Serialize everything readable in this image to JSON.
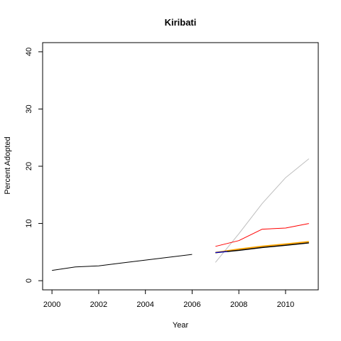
{
  "chart_data": {
    "type": "line",
    "title": "Kiribati",
    "xlabel": "Year",
    "ylabel": "Percent Adopted",
    "xlim": [
      1999.6,
      2011.4
    ],
    "ylim": [
      -1.6,
      41.6
    ],
    "xticks": [
      2000,
      2002,
      2004,
      2006,
      2008,
      2010
    ],
    "xtick_labels": [
      "2000",
      "2002",
      "2004",
      "2006",
      "2008",
      "2010"
    ],
    "yticks": [
      0,
      10,
      20,
      30,
      40
    ],
    "ytick_labels": [
      "0",
      "10",
      "20",
      "30",
      "40"
    ],
    "grid": false,
    "legend": "none",
    "series": [
      {
        "color": "#000000",
        "width": 1,
        "x": [
          2000,
          2001,
          2002,
          2003,
          2004,
          2005,
          2006
        ],
        "y": [
          1.8,
          2.4,
          2.6,
          3.1,
          3.6,
          4.1,
          4.6
        ]
      },
      {
        "color": "#bebebe",
        "width": 1,
        "x": [
          2007,
          2008,
          2009,
          2010,
          2011
        ],
        "y": [
          3.2,
          8.2,
          13.5,
          18.0,
          21.3
        ]
      },
      {
        "color": "#ff0000",
        "width": 1,
        "x": [
          2007,
          2008,
          2009,
          2010,
          2011
        ],
        "y": [
          6.0,
          7.0,
          9.0,
          9.2,
          10.0
        ]
      },
      {
        "color": "#ffa500",
        "width": 2,
        "x": [
          2007,
          2008,
          2009,
          2010,
          2011
        ],
        "y": [
          4.9,
          5.5,
          6.0,
          6.4,
          6.8
        ]
      },
      {
        "color": "#000000",
        "width": 1.5,
        "x": [
          2007,
          2008,
          2009,
          2010,
          2011
        ],
        "y": [
          4.9,
          5.3,
          5.8,
          6.2,
          6.6
        ]
      },
      {
        "color": "#0000ff",
        "width": 1,
        "x": [
          2007,
          2007.5
        ],
        "y": [
          4.9,
          5.1
        ]
      }
    ]
  }
}
